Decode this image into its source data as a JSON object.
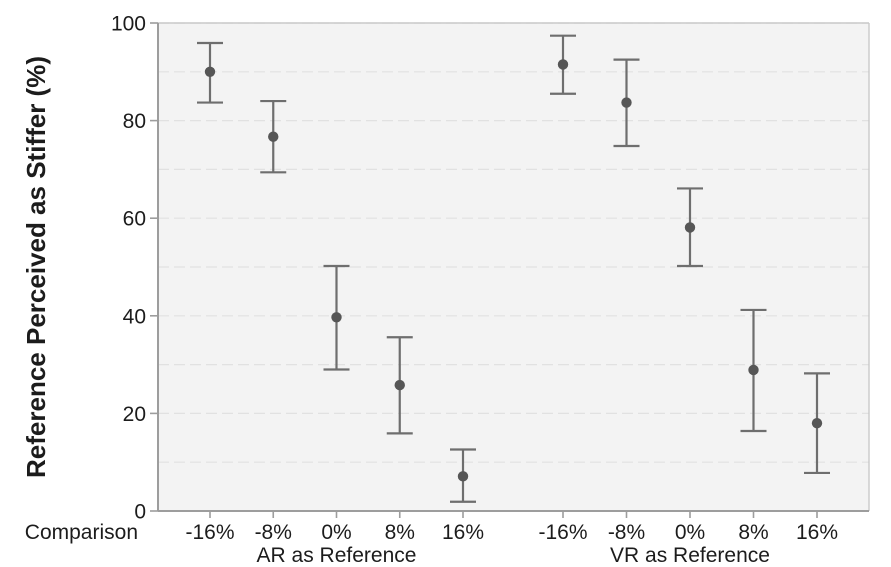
{
  "chart_data": {
    "type": "scatter",
    "subtype": "point-estimates-with-error-bars",
    "title": "",
    "ylabel": "Reference Perceived as Stiffer (%)",
    "xlabel": "Comparison",
    "ylim": [
      0,
      100
    ],
    "yticks": [
      0,
      20,
      40,
      60,
      80,
      100
    ],
    "gridlines_every": 10,
    "grid_style": "dashed-horizontal",
    "legend": "none",
    "categories": [
      "-16%",
      "-8%",
      "0%",
      "8%",
      "16%"
    ],
    "panels": [
      {
        "label": "AR as Reference",
        "points": [
          {
            "category": "-16%",
            "mean": 90.0,
            "ci_low": 83.7,
            "ci_high": 95.9
          },
          {
            "category": "-8%",
            "mean": 76.7,
            "ci_low": 69.4,
            "ci_high": 84.0
          },
          {
            "category": "0%",
            "mean": 39.7,
            "ci_low": 29.0,
            "ci_high": 50.2
          },
          {
            "category": "8%",
            "mean": 25.8,
            "ci_low": 15.9,
            "ci_high": 35.6
          },
          {
            "category": "16%",
            "mean": 7.1,
            "ci_low": 1.9,
            "ci_high": 12.6
          }
        ]
      },
      {
        "label": "VR as Reference",
        "points": [
          {
            "category": "-16%",
            "mean": 91.5,
            "ci_low": 85.5,
            "ci_high": 97.4
          },
          {
            "category": "-8%",
            "mean": 83.7,
            "ci_low": 74.8,
            "ci_high": 92.5
          },
          {
            "category": "0%",
            "mean": 58.1,
            "ci_low": 50.2,
            "ci_high": 66.1
          },
          {
            "category": "8%",
            "mean": 28.9,
            "ci_low": 16.4,
            "ci_high": 41.2
          },
          {
            "category": "16%",
            "mean": 18.0,
            "ci_low": 7.8,
            "ci_high": 28.2
          }
        ]
      }
    ],
    "colors": {
      "point": "#565656",
      "error_bar": "#6e6e6e",
      "panel_background": "#f3f3f3",
      "gridline": "#e1e1e1",
      "axis_line": "#9d9d9d",
      "panel_border": "#c9c9c9",
      "text": "#1c1c1c"
    }
  }
}
